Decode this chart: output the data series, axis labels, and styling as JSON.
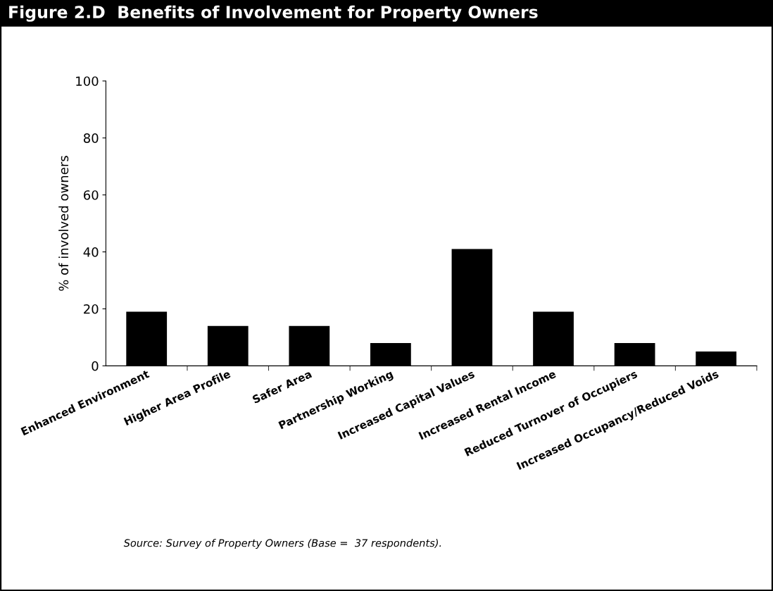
{
  "chart_data": {
    "type": "bar",
    "title": "Figure 2.D  Benefits of Involvement for Property Owners",
    "ylabel": "% of involved owners",
    "categories": [
      "Enhanced Environment",
      "Higher Area Profile",
      "Safer Area",
      "Partnership Working",
      "Increased Capital Values",
      "Increased Rental Income",
      "Reduced Turnover of Occupiers",
      "Increased Occupancy/Reduced Voids"
    ],
    "values": [
      19,
      14,
      14,
      8,
      41,
      19,
      8,
      5
    ],
    "color": "#000000",
    "ylim": [
      0,
      100
    ],
    "yticks": [
      0,
      20,
      40,
      60,
      80,
      100
    ],
    "grid": false,
    "annotations": [
      "Source: Survey of Property Owners (Base =  37 respondents)."
    ]
  }
}
